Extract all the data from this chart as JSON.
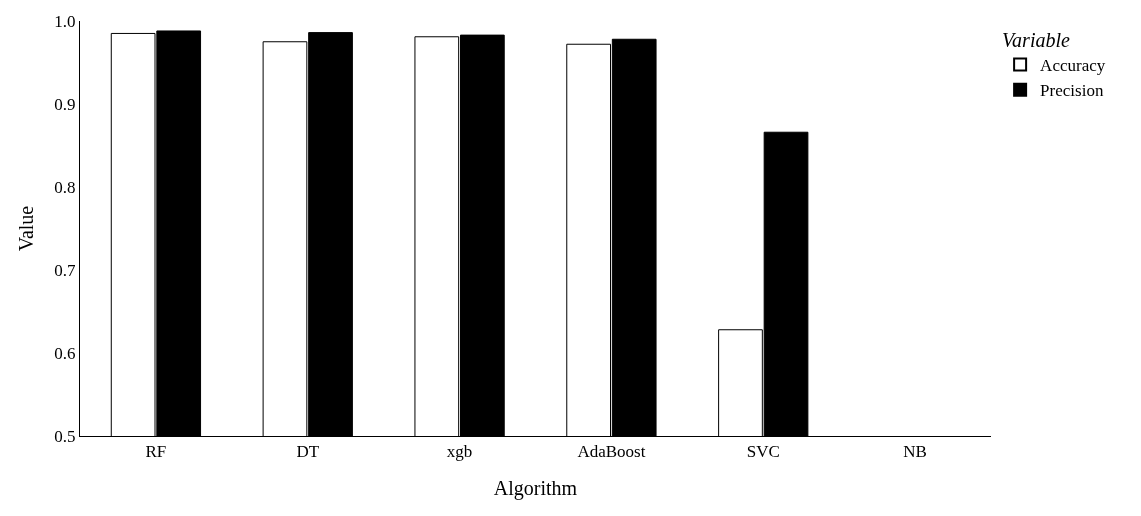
{
  "chart_data": {
    "type": "bar",
    "xlabel": "Algorithm",
    "ylabel": "Value",
    "legend_title": "Variable",
    "categories": [
      "RF",
      "DT",
      "xgb",
      "AdaBoost",
      "SVC",
      "NB"
    ],
    "series": [
      {
        "name": "Accuracy",
        "color": "#ffffff",
        "values": [
          0.985,
          0.975,
          0.981,
          0.972,
          0.628,
          null
        ]
      },
      {
        "name": "Precision",
        "color": "#000000",
        "values": [
          0.988,
          0.986,
          0.983,
          0.978,
          0.866,
          null
        ]
      }
    ],
    "ylim": [
      0.5,
      1.0
    ],
    "yticks": [
      0.5,
      0.6,
      0.7,
      0.8,
      0.9,
      {
        "value": 1.0,
        "label": "1.0"
      }
    ],
    "grid": false,
    "legend": "top right"
  }
}
